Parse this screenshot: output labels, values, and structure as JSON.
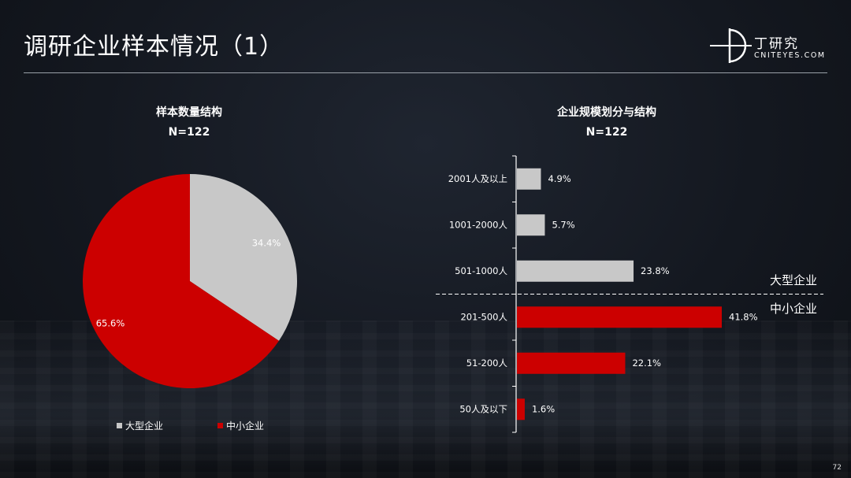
{
  "header": {
    "title": "调研企业样本情况（1）",
    "logo_name": "丁研究",
    "logo_url": "CNITEYES.COM"
  },
  "colors": {
    "large": "#c8c8c8",
    "small": "#cc0000"
  },
  "chart_data": [
    {
      "type": "pie",
      "title": "样本数量结构",
      "subtitle": "N=122",
      "categories": [
        "大型企业",
        "中小企业"
      ],
      "values": [
        34.4,
        65.6
      ],
      "labels": [
        "34.4%",
        "65.6%"
      ],
      "legend": "bottom"
    },
    {
      "type": "bar",
      "orientation": "horizontal",
      "title": "企业规模划分与结构",
      "subtitle": "N=122",
      "categories": [
        "2001人及以上",
        "1001-2000人",
        "501-1000人",
        "201-500人",
        "51-200人",
        "50人及以下"
      ],
      "values": [
        4.9,
        5.7,
        23.8,
        41.8,
        22.1,
        1.6
      ],
      "labels": [
        "4.9%",
        "5.7%",
        "23.8%",
        "41.8%",
        "22.1%",
        "1.6%"
      ],
      "groups": [
        "大型企业",
        "大型企业",
        "大型企业",
        "中小企业",
        "中小企业",
        "中小企业"
      ],
      "group_labels": [
        "大型企业",
        "中小企业"
      ]
    }
  ],
  "page_number": "72"
}
